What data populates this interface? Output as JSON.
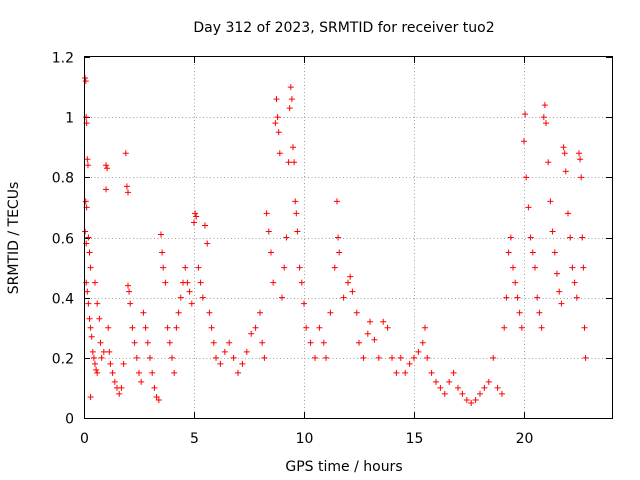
{
  "chart_data": {
    "type": "scatter",
    "title": "Day 312 of 2023, SRMTID for receiver tuo2",
    "xlabel": "GPS time / hours",
    "ylabel": "SRMTID / TECUs",
    "xlim": [
      0,
      24
    ],
    "ylim": [
      0,
      1.2
    ],
    "xticks": [
      "0",
      "5",
      "10",
      "15",
      "20"
    ],
    "yticks": [
      "0",
      "0.2",
      "0.4",
      "0.6",
      "0.8",
      "1",
      "1.2"
    ],
    "marker": "+",
    "color": "#ff0000",
    "grid": true,
    "series": [
      {
        "name": "tuo2",
        "points": [
          [
            0.05,
            1.13
          ],
          [
            0.08,
            1.12
          ],
          [
            0.1,
            1.0
          ],
          [
            0.12,
            0.98
          ],
          [
            0.15,
            0.86
          ],
          [
            0.18,
            0.84
          ],
          [
            0.08,
            0.72
          ],
          [
            0.12,
            0.7
          ],
          [
            0.05,
            0.62
          ],
          [
            0.1,
            0.58
          ],
          [
            0.2,
            0.6
          ],
          [
            0.25,
            0.55
          ],
          [
            0.3,
            0.5
          ],
          [
            0.1,
            0.45
          ],
          [
            0.15,
            0.42
          ],
          [
            0.2,
            0.38
          ],
          [
            0.25,
            0.33
          ],
          [
            0.3,
            0.3
          ],
          [
            0.35,
            0.27
          ],
          [
            0.4,
            0.22
          ],
          [
            0.45,
            0.2
          ],
          [
            0.5,
            0.18
          ],
          [
            0.55,
            0.16
          ],
          [
            0.6,
            0.15
          ],
          [
            0.3,
            0.07
          ],
          [
            0.5,
            0.45
          ],
          [
            0.6,
            0.38
          ],
          [
            0.7,
            0.33
          ],
          [
            0.75,
            0.25
          ],
          [
            0.8,
            0.2
          ],
          [
            0.9,
            0.22
          ],
          [
            1.0,
            0.84
          ],
          [
            1.05,
            0.83
          ],
          [
            1.0,
            0.76
          ],
          [
            1.1,
            0.3
          ],
          [
            1.15,
            0.22
          ],
          [
            1.2,
            0.18
          ],
          [
            1.3,
            0.15
          ],
          [
            1.4,
            0.12
          ],
          [
            1.5,
            0.1
          ],
          [
            1.6,
            0.08
          ],
          [
            1.7,
            0.1
          ],
          [
            1.8,
            0.18
          ],
          [
            1.9,
            0.88
          ],
          [
            1.95,
            0.77
          ],
          [
            2.0,
            0.75
          ],
          [
            2.0,
            0.44
          ],
          [
            2.05,
            0.42
          ],
          [
            2.1,
            0.38
          ],
          [
            2.2,
            0.3
          ],
          [
            2.3,
            0.25
          ],
          [
            2.4,
            0.2
          ],
          [
            2.5,
            0.15
          ],
          [
            2.6,
            0.12
          ],
          [
            2.7,
            0.35
          ],
          [
            2.8,
            0.3
          ],
          [
            2.9,
            0.25
          ],
          [
            3.0,
            0.2
          ],
          [
            3.1,
            0.15
          ],
          [
            3.2,
            0.1
          ],
          [
            3.3,
            0.07
          ],
          [
            3.4,
            0.06
          ],
          [
            3.5,
            0.61
          ],
          [
            3.55,
            0.55
          ],
          [
            3.6,
            0.5
          ],
          [
            3.7,
            0.45
          ],
          [
            3.8,
            0.3
          ],
          [
            3.9,
            0.25
          ],
          [
            4.0,
            0.2
          ],
          [
            4.1,
            0.15
          ],
          [
            4.2,
            0.3
          ],
          [
            4.3,
            0.35
          ],
          [
            4.4,
            0.4
          ],
          [
            4.5,
            0.45
          ],
          [
            4.6,
            0.5
          ],
          [
            4.7,
            0.45
          ],
          [
            4.8,
            0.42
          ],
          [
            4.9,
            0.38
          ],
          [
            5.0,
            0.65
          ],
          [
            5.05,
            0.68
          ],
          [
            5.1,
            0.67
          ],
          [
            5.2,
            0.5
          ],
          [
            5.3,
            0.45
          ],
          [
            5.4,
            0.4
          ],
          [
            5.5,
            0.64
          ],
          [
            5.6,
            0.58
          ],
          [
            5.7,
            0.35
          ],
          [
            5.8,
            0.3
          ],
          [
            5.9,
            0.25
          ],
          [
            6.0,
            0.2
          ],
          [
            6.2,
            0.18
          ],
          [
            6.4,
            0.22
          ],
          [
            6.6,
            0.25
          ],
          [
            6.8,
            0.2
          ],
          [
            7.0,
            0.15
          ],
          [
            7.2,
            0.18
          ],
          [
            7.4,
            0.22
          ],
          [
            7.6,
            0.28
          ],
          [
            7.8,
            0.3
          ],
          [
            8.0,
            0.35
          ],
          [
            8.1,
            0.25
          ],
          [
            8.2,
            0.2
          ],
          [
            8.3,
            0.68
          ],
          [
            8.4,
            0.62
          ],
          [
            8.5,
            0.55
          ],
          [
            8.6,
            0.45
          ],
          [
            8.7,
            0.98
          ],
          [
            8.75,
            1.06
          ],
          [
            8.8,
            1.0
          ],
          [
            8.85,
            0.95
          ],
          [
            8.9,
            0.88
          ],
          [
            9.0,
            0.4
          ],
          [
            9.1,
            0.5
          ],
          [
            9.2,
            0.6
          ],
          [
            9.3,
            0.85
          ],
          [
            9.35,
            1.03
          ],
          [
            9.4,
            1.1
          ],
          [
            9.45,
            1.06
          ],
          [
            9.5,
            0.9
          ],
          [
            9.55,
            0.85
          ],
          [
            9.6,
            0.72
          ],
          [
            9.65,
            0.68
          ],
          [
            9.7,
            0.62
          ],
          [
            9.8,
            0.5
          ],
          [
            9.9,
            0.45
          ],
          [
            10.0,
            0.38
          ],
          [
            10.1,
            0.3
          ],
          [
            10.3,
            0.25
          ],
          [
            10.5,
            0.2
          ],
          [
            10.7,
            0.3
          ],
          [
            10.9,
            0.25
          ],
          [
            11.0,
            0.2
          ],
          [
            11.2,
            0.35
          ],
          [
            11.4,
            0.5
          ],
          [
            11.5,
            0.72
          ],
          [
            11.55,
            0.6
          ],
          [
            11.6,
            0.55
          ],
          [
            11.8,
            0.4
          ],
          [
            12.0,
            0.45
          ],
          [
            12.1,
            0.47
          ],
          [
            12.2,
            0.42
          ],
          [
            12.4,
            0.35
          ],
          [
            12.5,
            0.25
          ],
          [
            12.7,
            0.2
          ],
          [
            12.9,
            0.28
          ],
          [
            13.0,
            0.32
          ],
          [
            13.2,
            0.26
          ],
          [
            13.4,
            0.2
          ],
          [
            13.6,
            0.32
          ],
          [
            13.8,
            0.3
          ],
          [
            14.0,
            0.2
          ],
          [
            14.2,
            0.15
          ],
          [
            14.4,
            0.2
          ],
          [
            14.6,
            0.15
          ],
          [
            14.8,
            0.18
          ],
          [
            15.0,
            0.2
          ],
          [
            15.2,
            0.22
          ],
          [
            15.4,
            0.25
          ],
          [
            15.5,
            0.3
          ],
          [
            15.6,
            0.2
          ],
          [
            15.8,
            0.15
          ],
          [
            16.0,
            0.12
          ],
          [
            16.2,
            0.1
          ],
          [
            16.4,
            0.08
          ],
          [
            16.6,
            0.12
          ],
          [
            16.8,
            0.15
          ],
          [
            17.0,
            0.1
          ],
          [
            17.2,
            0.08
          ],
          [
            17.4,
            0.06
          ],
          [
            17.6,
            0.05
          ],
          [
            17.8,
            0.06
          ],
          [
            18.0,
            0.08
          ],
          [
            18.2,
            0.1
          ],
          [
            18.4,
            0.12
          ],
          [
            18.6,
            0.2
          ],
          [
            18.8,
            0.1
          ],
          [
            19.0,
            0.08
          ],
          [
            19.1,
            0.3
          ],
          [
            19.2,
            0.4
          ],
          [
            19.3,
            0.55
          ],
          [
            19.4,
            0.6
          ],
          [
            19.5,
            0.5
          ],
          [
            19.6,
            0.45
          ],
          [
            19.7,
            0.4
          ],
          [
            19.8,
            0.35
          ],
          [
            19.9,
            0.3
          ],
          [
            20.0,
            0.92
          ],
          [
            20.05,
            1.01
          ],
          [
            20.1,
            0.8
          ],
          [
            20.2,
            0.7
          ],
          [
            20.3,
            0.6
          ],
          [
            20.4,
            0.55
          ],
          [
            20.5,
            0.5
          ],
          [
            20.6,
            0.4
          ],
          [
            20.7,
            0.35
          ],
          [
            20.8,
            0.3
          ],
          [
            20.9,
            1.0
          ],
          [
            20.95,
            1.04
          ],
          [
            21.0,
            0.98
          ],
          [
            21.1,
            0.85
          ],
          [
            21.2,
            0.72
          ],
          [
            21.3,
            0.62
          ],
          [
            21.4,
            0.55
          ],
          [
            21.5,
            0.48
          ],
          [
            21.6,
            0.42
          ],
          [
            21.7,
            0.38
          ],
          [
            21.8,
            0.9
          ],
          [
            21.85,
            0.88
          ],
          [
            21.9,
            0.82
          ],
          [
            22.0,
            0.68
          ],
          [
            22.1,
            0.6
          ],
          [
            22.2,
            0.5
          ],
          [
            22.3,
            0.45
          ],
          [
            22.4,
            0.4
          ],
          [
            22.5,
            0.88
          ],
          [
            22.55,
            0.86
          ],
          [
            22.6,
            0.8
          ],
          [
            22.65,
            0.6
          ],
          [
            22.7,
            0.5
          ],
          [
            22.75,
            0.3
          ],
          [
            22.8,
            0.2
          ]
        ]
      }
    ]
  }
}
